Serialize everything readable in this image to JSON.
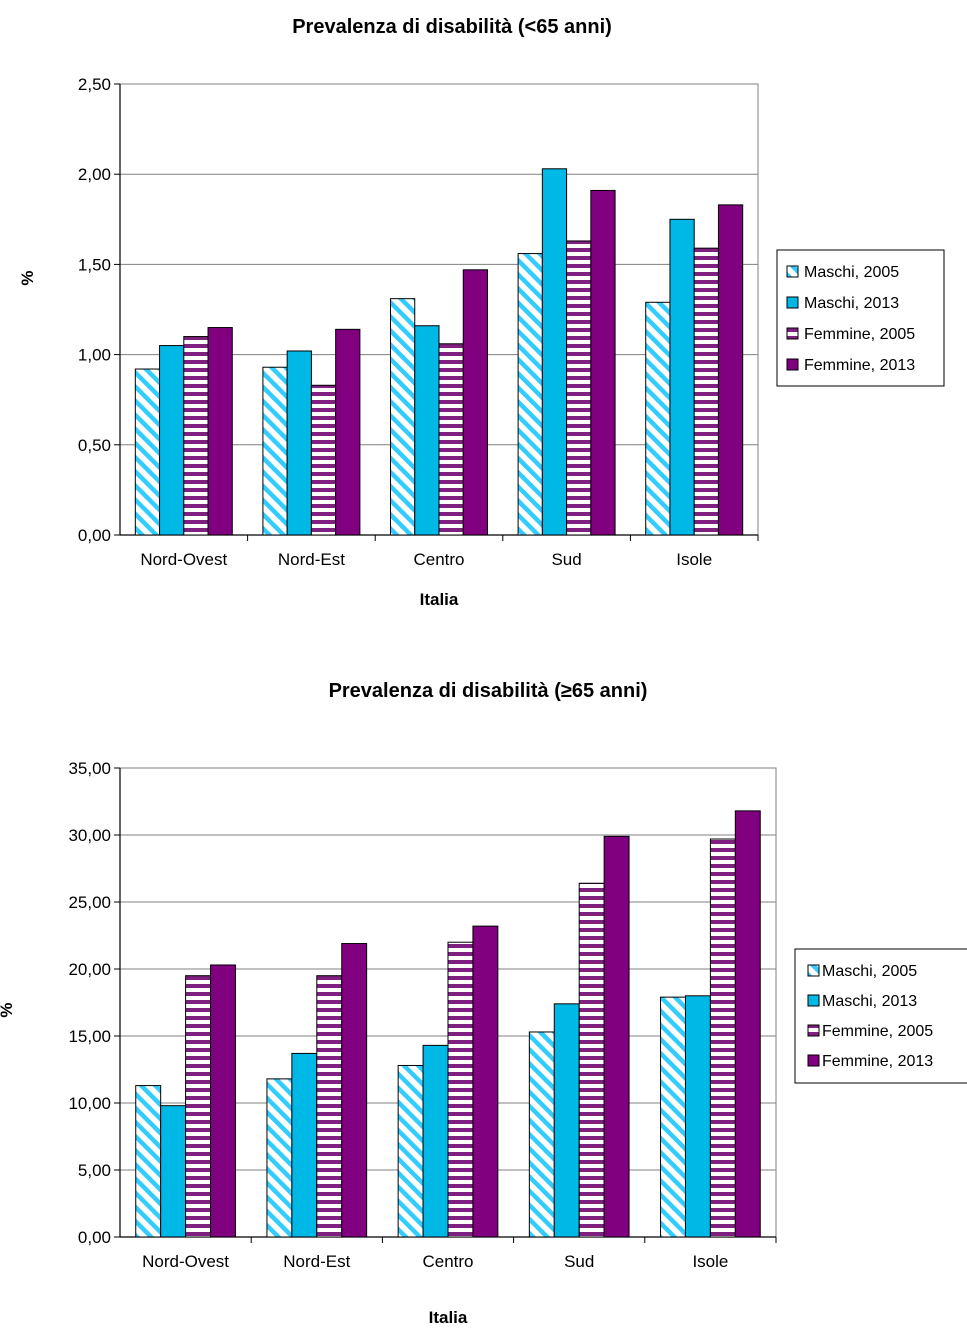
{
  "chart_data": [
    {
      "type": "bar",
      "title": "Prevalenza di disabilità (<65 anni)",
      "xlabel": "Italia",
      "ylabel": "%",
      "ylim": [
        0,
        2.5
      ],
      "yticks": [
        "0,00",
        "0,50",
        "1,00",
        "1,50",
        "2,00",
        "2,50"
      ],
      "grid": true,
      "legend_position": "right",
      "categories": [
        "Nord-Ovest",
        "Nord-Est",
        "Centro",
        "Sud",
        "Isole"
      ],
      "series": [
        {
          "name": "Maschi, 2005",
          "values": [
            0.92,
            0.93,
            1.31,
            1.56,
            1.29
          ],
          "color": "#33CCFF",
          "pattern": "diagonal"
        },
        {
          "name": "Maschi, 2013",
          "values": [
            1.05,
            1.02,
            1.16,
            2.03,
            1.75
          ],
          "color": "#00B8E6",
          "pattern": "solid"
        },
        {
          "name": "Femmine, 2005",
          "values": [
            1.1,
            0.83,
            1.06,
            1.63,
            1.59
          ],
          "color": "#7F1F7F",
          "pattern": "horizontal"
        },
        {
          "name": "Femmine, 2013",
          "values": [
            1.15,
            1.14,
            1.47,
            1.91,
            1.83
          ],
          "color": "#800080",
          "pattern": "solid"
        }
      ]
    },
    {
      "type": "bar",
      "title": "Prevalenza di disabilità (≥65 anni)",
      "xlabel": "Italia",
      "ylabel": "%",
      "ylim": [
        0,
        35
      ],
      "yticks": [
        "0,00",
        "5,00",
        "10,00",
        "15,00",
        "20,00",
        "25,00",
        "30,00",
        "35,00"
      ],
      "grid": true,
      "legend_position": "right",
      "categories": [
        "Nord-Ovest",
        "Nord-Est",
        "Centro",
        "Sud",
        "Isole"
      ],
      "series": [
        {
          "name": "Maschi, 2005",
          "values": [
            11.3,
            11.8,
            12.8,
            15.3,
            17.9
          ],
          "color": "#33CCFF",
          "pattern": "diagonal"
        },
        {
          "name": "Maschi, 2013",
          "values": [
            9.8,
            13.7,
            14.3,
            17.4,
            18.0
          ],
          "color": "#00B8E6",
          "pattern": "solid"
        },
        {
          "name": "Femmine, 2005",
          "values": [
            19.5,
            19.5,
            22.0,
            26.4,
            29.7
          ],
          "color": "#7F1F7F",
          "pattern": "horizontal"
        },
        {
          "name": "Femmine, 2013",
          "values": [
            20.3,
            21.9,
            23.2,
            29.9,
            31.8
          ],
          "color": "#800080",
          "pattern": "solid"
        }
      ]
    }
  ]
}
